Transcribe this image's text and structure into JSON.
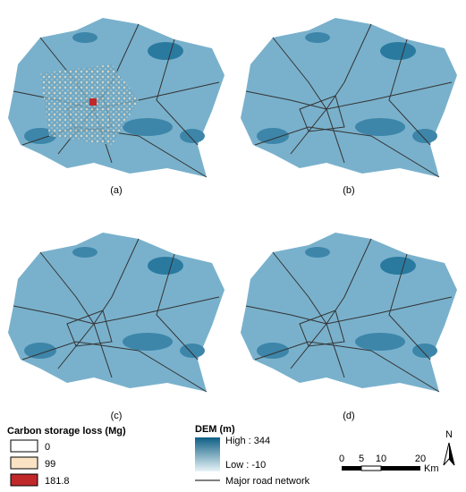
{
  "panels": [
    {
      "label": "(a)"
    },
    {
      "label": "(b)"
    },
    {
      "label": "(c)"
    },
    {
      "label": "(d)"
    }
  ],
  "legend": {
    "carbon_title": "Carbon storage loss (Mg)",
    "carbon_items": [
      "0",
      "99",
      "181.8"
    ],
    "dem_title": "DEM (m)",
    "dem_high": "High : 344",
    "dem_low": "Low : -10",
    "road": "Major road network"
  },
  "scale": {
    "ticks": [
      "0",
      "5",
      "10",
      "20"
    ],
    "unit": "Km"
  },
  "north": "N"
}
